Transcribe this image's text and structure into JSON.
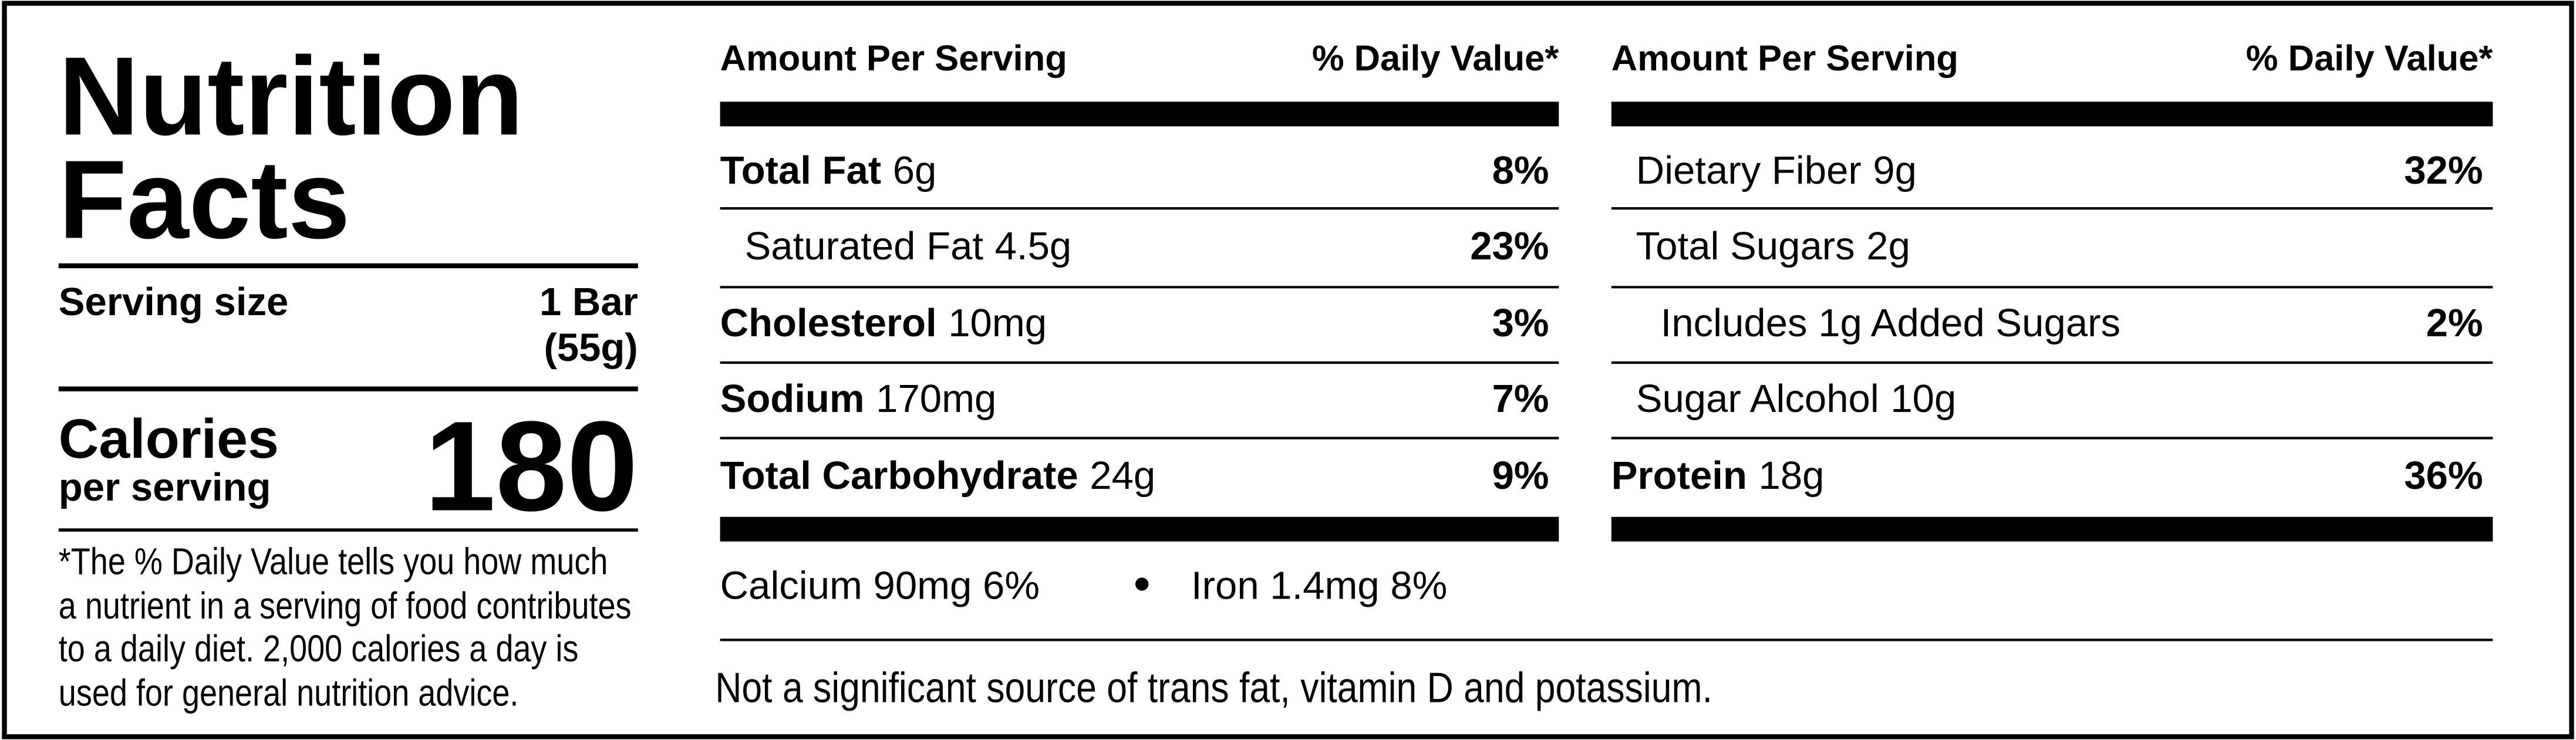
{
  "title_lines": [
    "Nutrition",
    "Facts"
  ],
  "serving_size": {
    "label": "Serving size",
    "value_lines": [
      "1 Bar",
      "(55g)"
    ]
  },
  "calories": {
    "label_lines": [
      "Calories",
      "per serving"
    ],
    "value": 180
  },
  "footnote_lines": [
    "*The % Daily Value tells you how much",
    "a nutrient in a serving of food contributes",
    "to a daily diet. 2,000 calories a day is",
    "used for general nutrition advice."
  ],
  "columns": [
    {
      "header": [
        "Amount Per Serving",
        "% Daily Value*"
      ],
      "rows": [
        {
          "name": "Total Fat",
          "amount": "6g",
          "dv": "8%",
          "level": 0
        },
        {
          "name": "Saturated Fat",
          "amount": "4.5g",
          "dv": "23%",
          "level": 1
        },
        {
          "name": "Cholesterol",
          "amount": "10mg",
          "dv": "3%",
          "level": 0
        },
        {
          "name": "Sodium",
          "amount": "170mg",
          "dv": "7%",
          "level": 0
        },
        {
          "name": "Total Carbohydrate",
          "amount": "24g",
          "dv": "9%",
          "level": 0
        }
      ]
    },
    {
      "header": [
        "Amount Per Serving",
        "% Daily Value*"
      ],
      "rows": [
        {
          "name": "Dietary Fiber",
          "amount": "9g",
          "dv": "32%",
          "level": 1
        },
        {
          "name": "Total Sugars",
          "amount": "2g",
          "level": 1
        },
        {
          "name": "Includes 1g Added Sugars",
          "dv": "2%",
          "level": 2
        },
        {
          "name": "Sugar Alcohol",
          "amount": "10g",
          "level": 1
        },
        {
          "name": "Protein",
          "amount": "18g",
          "dv": "36%",
          "level": 0
        }
      ]
    }
  ],
  "minerals": [
    "Calcium 90mg 6%",
    "Iron 1.4mg 8%"
  ],
  "footer": "Not a significant source of trans fat, vitamin D and potassium."
}
